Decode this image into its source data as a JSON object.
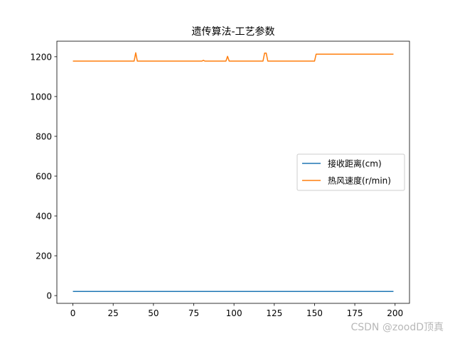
{
  "chart_data": {
    "type": "line",
    "title": "遗传算法-工艺参数",
    "xlabel": "",
    "ylabel": "",
    "xlim": [
      -9.95,
      208.95
    ],
    "ylim": [
      -39,
      1278
    ],
    "xticks": [
      0,
      25,
      50,
      75,
      100,
      125,
      150,
      175,
      200
    ],
    "yticks": [
      0,
      200,
      400,
      600,
      800,
      1000,
      1200
    ],
    "grid": false,
    "legend_position": "center-right",
    "series": [
      {
        "name": "接收距离(cm)",
        "color": "#1f77b4",
        "x": [
          0,
          199
        ],
        "y": [
          21,
          21
        ]
      },
      {
        "name": "热风速度(r/min)",
        "color": "#ff7f0e",
        "x": [
          0,
          38,
          39,
          40,
          80,
          81,
          82,
          95,
          96,
          97,
          118,
          119,
          120,
          121,
          150,
          151,
          199
        ],
        "y": [
          1178,
          1178,
          1220,
          1178,
          1178,
          1182,
          1178,
          1178,
          1202,
          1178,
          1178,
          1218,
          1218,
          1178,
          1178,
          1213,
          1213
        ]
      }
    ]
  },
  "watermark": "CSDN @zoodD顶真"
}
